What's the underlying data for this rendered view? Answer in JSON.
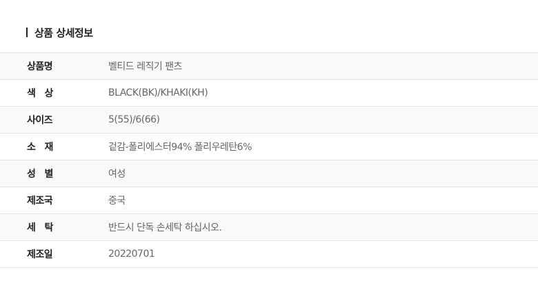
{
  "section_title": "상품 상세정보",
  "rows": [
    {
      "label": "상품명",
      "value": "벨티드 레직기 팬츠"
    },
    {
      "label": "색   상",
      "value": "BLACK(BK)/KHAKI(KH)"
    },
    {
      "label": "사이즈",
      "value": "5(55)/6(66)"
    },
    {
      "label": "소   재",
      "value": "겉감-폴리에스터94% 폴리우레탄6%"
    },
    {
      "label": "성   별",
      "value": "여성"
    },
    {
      "label": "제조국",
      "value": "중국"
    },
    {
      "label": "세   탁",
      "value": "반드시 단독 손세탁 하십시오."
    },
    {
      "label": "제조일",
      "value": "20220701"
    }
  ]
}
